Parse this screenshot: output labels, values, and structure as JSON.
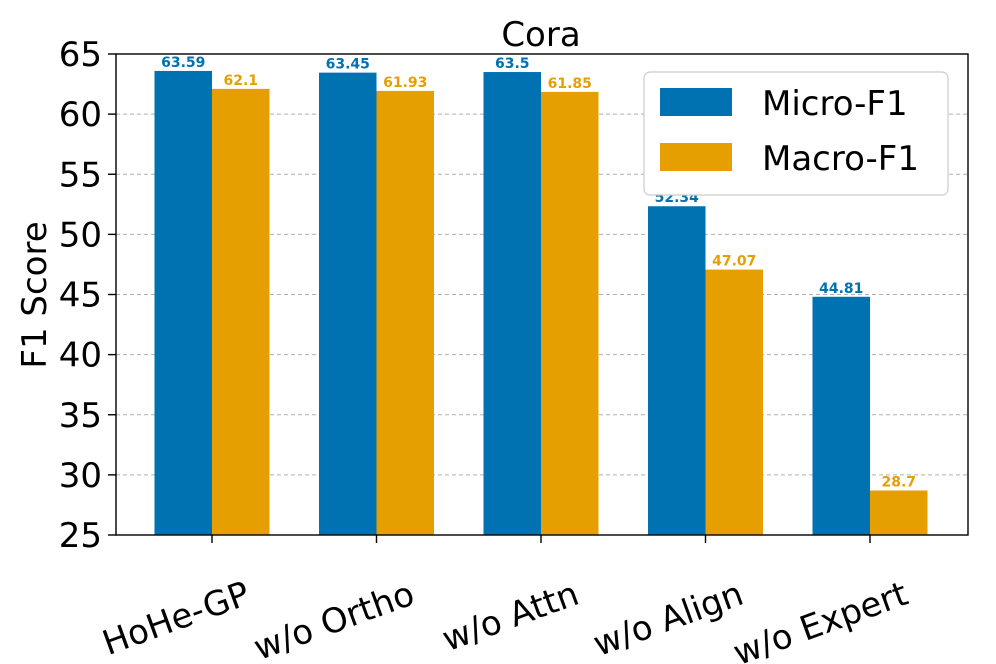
{
  "chart_data": {
    "type": "bar",
    "title": "Cora",
    "xlabel": "",
    "ylabel": "F1 Score",
    "ylim": [
      25,
      65
    ],
    "yticks": [
      25,
      30,
      35,
      40,
      45,
      50,
      55,
      60,
      65
    ],
    "categories": [
      "HoHe-GP",
      "w/o Ortho",
      "w/o Attn",
      "w/o Align",
      "w/o Expert"
    ],
    "series": [
      {
        "name": "Micro-F1",
        "color": "#0072b2",
        "values": [
          63.59,
          63.45,
          63.5,
          52.34,
          44.81
        ],
        "labels": [
          "63.59",
          "63.45",
          "63.5",
          "52.34",
          "44.81"
        ]
      },
      {
        "name": "Macro-F1",
        "color": "#e69f00",
        "values": [
          62.1,
          61.93,
          61.85,
          47.07,
          28.7
        ],
        "labels": [
          "62.1",
          "61.93",
          "61.85",
          "47.07",
          "28.7"
        ]
      }
    ],
    "grid": "y-dashed",
    "legend_position": "top-right"
  }
}
